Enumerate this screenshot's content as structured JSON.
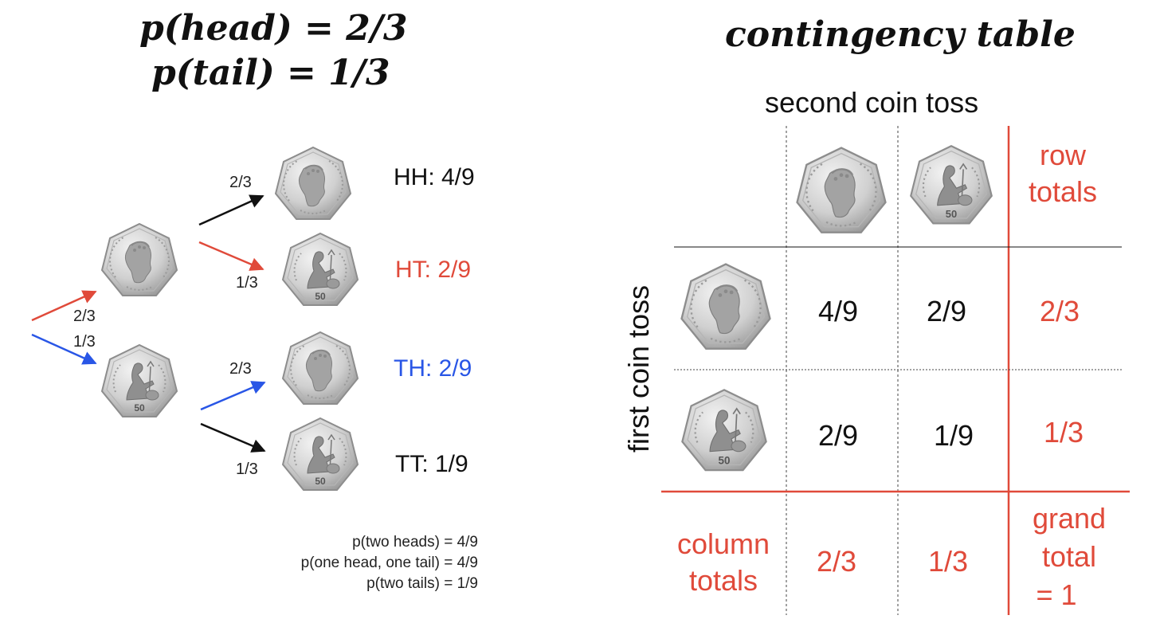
{
  "left_title": {
    "line1": "p(head) = 2/3",
    "line2": "p(tail) = 1/3"
  },
  "right_title": "contingency table",
  "tree": {
    "first_head_prob": "2/3",
    "first_tail_prob": "1/3",
    "branches": [
      {
        "prob": "2/3",
        "outcome": "HH: 4/9"
      },
      {
        "prob": "1/3",
        "outcome": "HT: 2/9"
      },
      {
        "prob": "2/3",
        "outcome": "TH: 2/9"
      },
      {
        "prob": "1/3",
        "outcome": "TT: 1/9"
      }
    ]
  },
  "summary": [
    "p(two heads) = 4/9",
    "p(one head, one tail) = 4/9",
    "p(two tails) = 1/9"
  ],
  "table": {
    "col_header": "second coin toss",
    "row_header": "first coin toss",
    "row_totals_line1": "row",
    "row_totals_line2": "totals",
    "column_totals_line1": "column",
    "column_totals_line2": "totals",
    "grand_line1": "grand",
    "grand_line2": "total",
    "grand_line3": "= 1",
    "cells": {
      "hh": "4/9",
      "ht": "2/9",
      "th": "2/9",
      "tt": "1/9",
      "row1_total": "2/3",
      "row2_total": "1/3",
      "col1_total": "2/3",
      "col2_total": "1/3"
    },
    "coin_head_text": "50 PENCE · ELIZABETH II · D · G · REG · F · D",
    "coin_tail_text": "FIFTY PENCE",
    "coin_tail_value": "50"
  },
  "colors": {
    "red": "#e04a3a",
    "blue": "#2956e6",
    "coin_face": "#d4d4d4",
    "coin_edge": "#a9a9a9"
  },
  "icons": [
    "head-coin-icon",
    "tail-coin-icon",
    "arrow-icon"
  ]
}
